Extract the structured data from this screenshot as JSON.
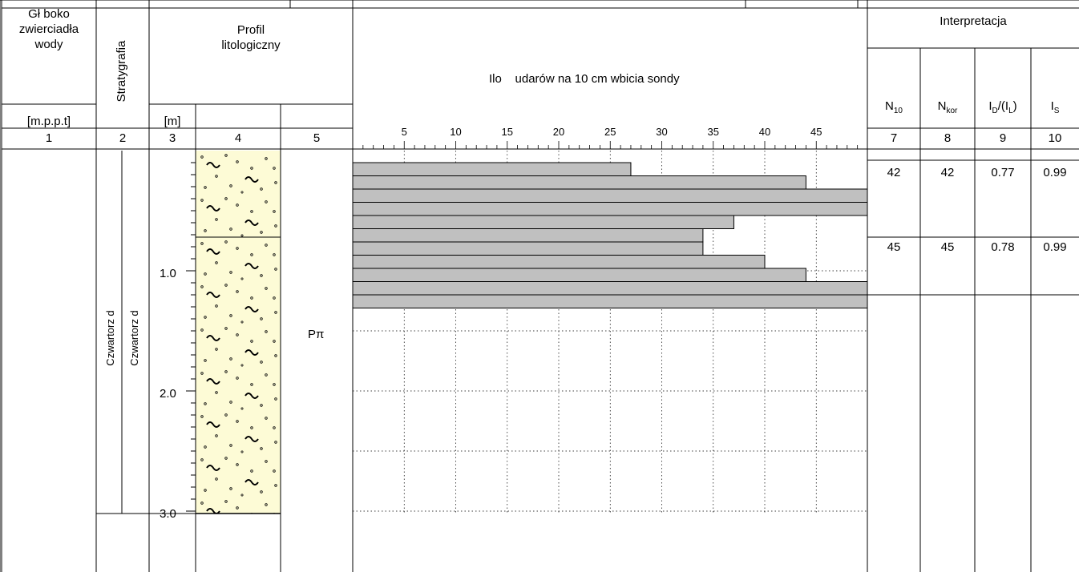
{
  "header": {
    "col1_line1": "Gł boko",
    "col1_line2": "zwierciadła",
    "col1_line3": "wody",
    "col1_unit": "[m.p.p.t]",
    "col2_title": "Stratygrafia",
    "col3_unit": "[m]",
    "profile_line1": "Profil",
    "profile_line2": "litologiczny",
    "chart_title": "Ilo    udarów na 10 cm wbicia sondy",
    "interp_title": "Interpretacja",
    "n10": {
      "main": "N",
      "sub": "10"
    },
    "nkor": {
      "main": "N",
      "sub": "kor"
    },
    "id_il": {
      "a": "I",
      "a_sub": "D",
      "b": "/(I",
      "b_sub": "L",
      "c": ")"
    },
    "is": {
      "main": "I",
      "sub": "S"
    }
  },
  "col_numbers": [
    "1",
    "2",
    "3",
    "4",
    "5",
    "7",
    "8",
    "9",
    "10"
  ],
  "stratigraphy": {
    "outer": "Czwartorz d",
    "inner": "Czwartorz d"
  },
  "soil_symbol": "Pπ",
  "depth_ticks": [
    "1.0",
    "2.0",
    "3.0"
  ],
  "chart_data": {
    "type": "bar",
    "orientation": "horizontal",
    "title": "Ilo    udarów na 10 cm wbicia sondy",
    "x_ticks": [
      "5",
      "10",
      "15",
      "20",
      "25",
      "30",
      "35",
      "40",
      "45"
    ],
    "xlim": [
      0,
      50
    ],
    "depth_step_m": 0.1,
    "values": [
      27,
      44,
      50,
      50,
      37,
      34,
      34,
      40,
      44,
      50,
      50
    ],
    "grid": true
  },
  "interpretation": [
    {
      "n10": "42",
      "nkor": "42",
      "id": "0.77",
      "is": "0.99"
    },
    {
      "n10": "45",
      "nkor": "45",
      "id": "0.78",
      "is": "0.99"
    }
  ]
}
